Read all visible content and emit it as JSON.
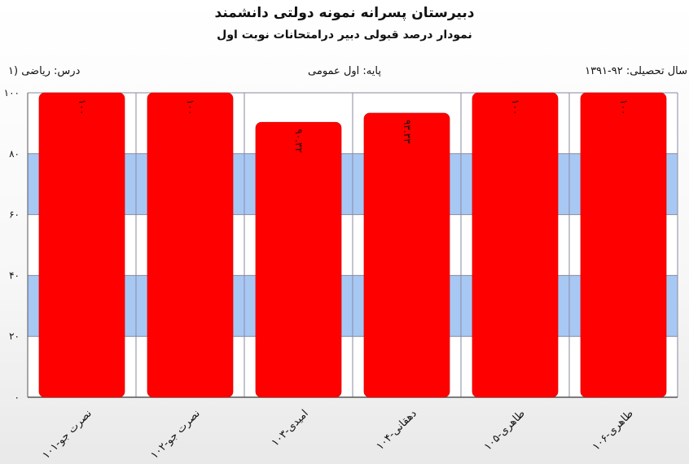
{
  "header": {
    "title": "دبیرستان پسرانه نمونه دولتی دانشمند",
    "subtitle": "نمودار درصد قبولی دبیر درامتحانات نوبت اول",
    "year": "سال تحصیلی: ۹۲-۱۳۹۱",
    "grade": "پایه: اول عمومی",
    "course": "درس: ریاضی (۱"
  },
  "colors": {
    "bar": "#ff0000",
    "band": "#a8c8f4",
    "grid": "#8a8aa0",
    "plot_bg": "#ffffff"
  },
  "chart_data": {
    "type": "bar",
    "title": "نمودار درصد قبولی دبیر درامتحانات نوبت اول",
    "categories": [
      "نصرت جو-۱۰۱",
      "نصرت جو-۱۰۲",
      "امیدی-۱۰۳",
      "دهقانی-۱۰۴",
      "طاهری-۱۰۵",
      "طاهری-۱۰۶"
    ],
    "values": [
      100,
      100,
      90.32,
      93.33,
      100,
      100
    ],
    "data_labels": [
      "۱۰۰",
      "۱۰۰",
      "۹۰.۳۲",
      "۹۳.۳۳",
      "۱۰۰",
      "۱۰۰"
    ],
    "ylim": [
      0,
      100
    ],
    "yticks": [
      0,
      20,
      40,
      60,
      80,
      100
    ],
    "ytick_labels": [
      "۰",
      "۲۰",
      "۴۰",
      "۶۰",
      "۸۰",
      "۱۰۰"
    ],
    "grid": true,
    "legend": "none"
  }
}
